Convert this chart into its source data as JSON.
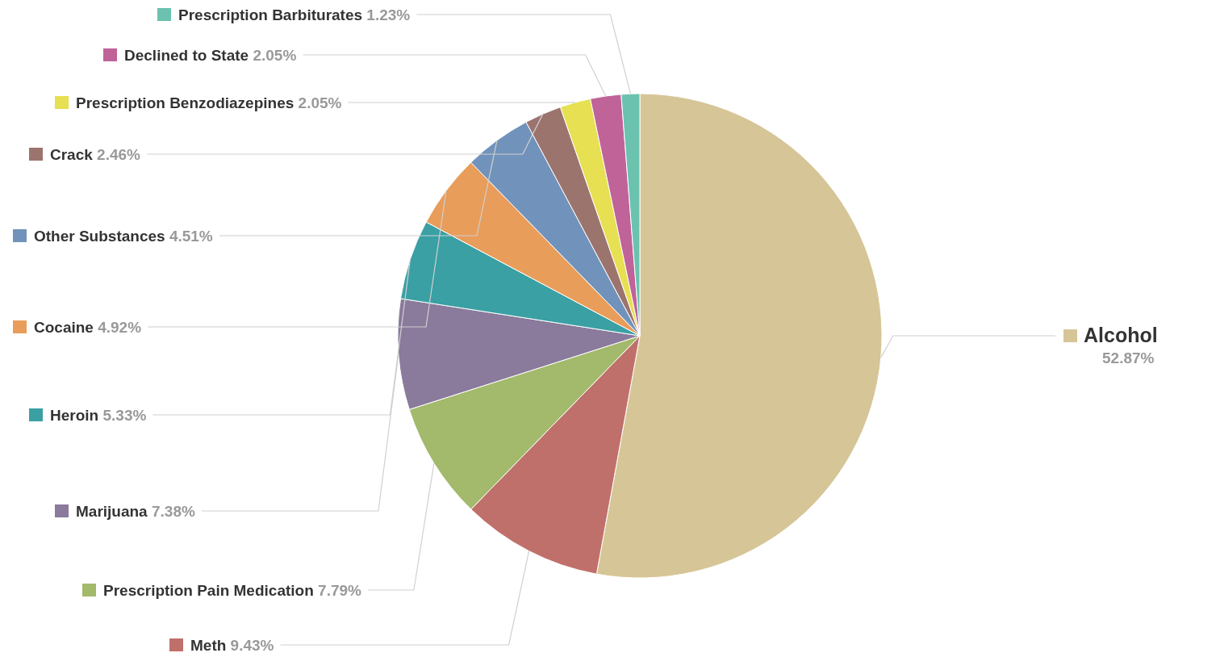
{
  "chart_data": {
    "type": "pie",
    "categories": [
      "Alcohol",
      "Meth",
      "Prescription Pain Medication",
      "Marijuana",
      "Heroin",
      "Cocaine",
      "Other Substances",
      "Crack",
      "Prescription Benzodiazepines",
      "Declined to State",
      "Prescription Barbiturates"
    ],
    "values": [
      52.87,
      9.43,
      7.79,
      7.38,
      5.33,
      4.92,
      4.51,
      2.46,
      2.05,
      2.05,
      1.23
    ],
    "value_labels": [
      "52.87%",
      "9.43%",
      "7.79%",
      "7.38%",
      "5.33%",
      "4.92%",
      "4.51%",
      "2.46%",
      "2.05%",
      "2.05%",
      "1.23%"
    ],
    "legend": "left",
    "colors": [
      "#d6c596",
      "#c0706a",
      "#a3b96c",
      "#8a7a9c",
      "#3aa0a4",
      "#e89d5a",
      "#7193bb",
      "#9c746e",
      "#e6e052",
      "#c06399",
      "#6bc2ae"
    ]
  }
}
